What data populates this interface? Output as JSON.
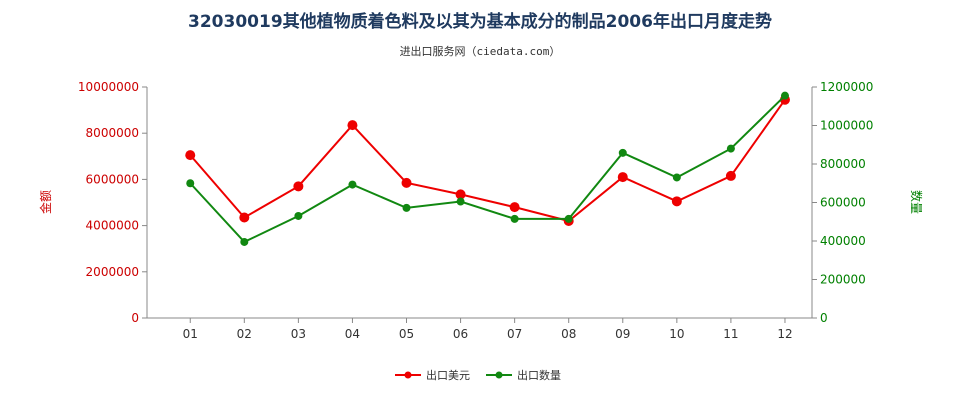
{
  "chart_data": {
    "type": "line",
    "title": "32030019其他植物质着色料及以其为基本成分的制品2006年出口月度走势",
    "subtitle": "进出口服务网（ciedata.com）",
    "categories": [
      "01",
      "02",
      "03",
      "04",
      "05",
      "06",
      "07",
      "08",
      "09",
      "10",
      "11",
      "12"
    ],
    "y_left": {
      "label": "金额",
      "ticks": [
        "0",
        "2000000",
        "4000000",
        "6000000",
        "8000000",
        "10000000"
      ],
      "range": [
        0,
        10000000
      ],
      "color": "#cc0000"
    },
    "y_right": {
      "label": "数量",
      "ticks": [
        "0",
        "200000",
        "400000",
        "600000",
        "800000",
        "1000000",
        "1200000"
      ],
      "range": [
        0,
        1200000
      ],
      "color": "#008000"
    },
    "series": [
      {
        "name": "出口美元",
        "axis": "left",
        "color": "#ee0000",
        "values": [
          7050000,
          4350000,
          5700000,
          8350000,
          5850000,
          5350000,
          4800000,
          4200000,
          6100000,
          5050000,
          6150000,
          9450000
        ]
      },
      {
        "name": "出口数量",
        "axis": "right",
        "color": "#118811",
        "values": [
          700000,
          395000,
          530000,
          693000,
          572000,
          605000,
          515000,
          515000,
          858000,
          730000,
          880000,
          1155000
        ]
      }
    ],
    "grid": false,
    "legend_position": "bottom-center"
  }
}
